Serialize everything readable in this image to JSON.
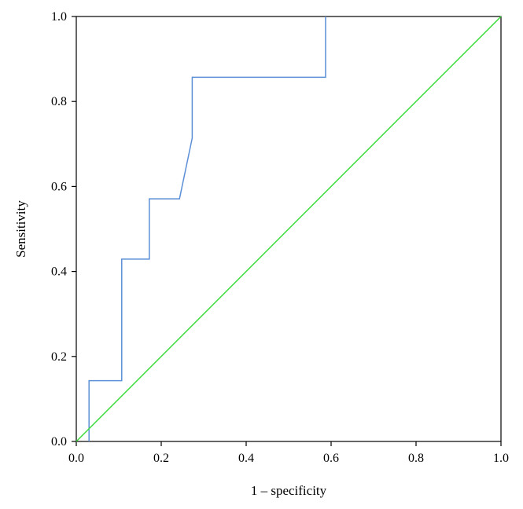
{
  "chart_data": {
    "type": "line",
    "title": "",
    "xlabel": "1 – specificity",
    "ylabel": "Sensitivity",
    "xlim": [
      0,
      1
    ],
    "ylim": [
      0,
      1
    ],
    "x_ticks": [
      "0.0",
      "0.2",
      "0.4",
      "0.6",
      "0.8",
      "1.0"
    ],
    "y_ticks": [
      "0.0",
      "0.2",
      "0.4",
      "0.6",
      "0.8",
      "1.0"
    ],
    "grid": false,
    "legend": "none",
    "series": [
      {
        "color": "#5b8fd6",
        "x": [
          0.03,
          0.03,
          0.107,
          0.107,
          0.172,
          0.172,
          0.243,
          0.273,
          0.273,
          0.587,
          0.587
        ],
        "y": [
          0.0,
          0.143,
          0.143,
          0.429,
          0.429,
          0.571,
          0.571,
          0.714,
          0.857,
          0.857,
          1.0
        ]
      },
      {
        "color": "#3ddc3d",
        "x": [
          0.0,
          1.0
        ],
        "y": [
          0.0,
          1.0
        ]
      }
    ]
  }
}
